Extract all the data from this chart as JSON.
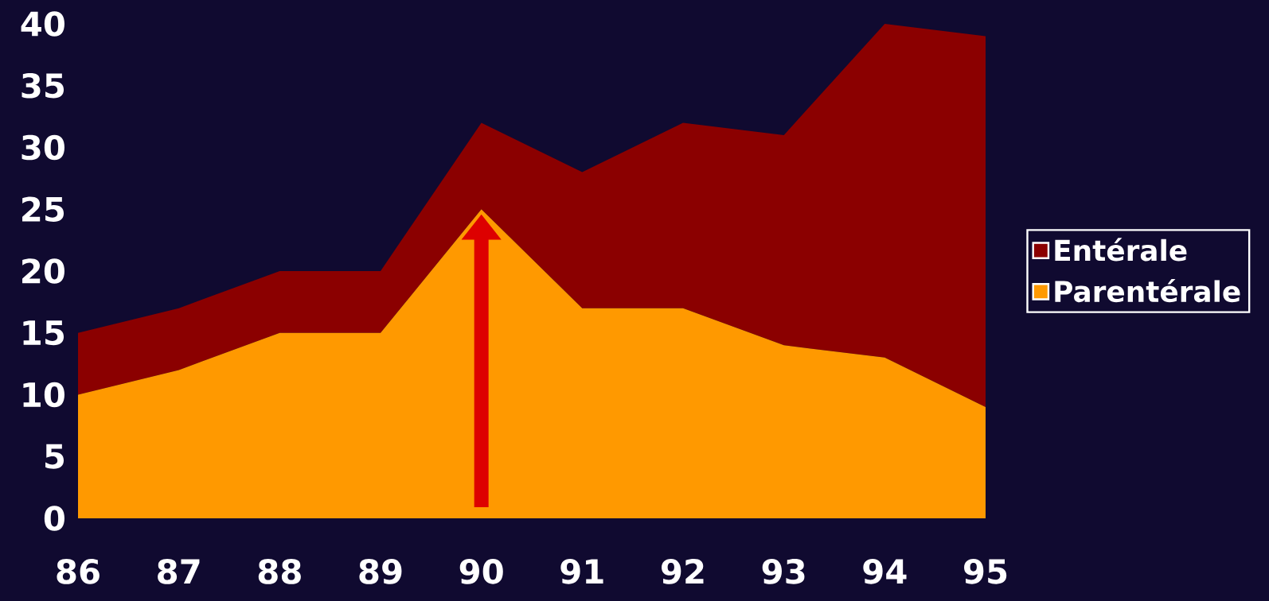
{
  "chart_data": {
    "type": "area",
    "stacked": true,
    "categories": [
      "86",
      "87",
      "88",
      "89",
      "90",
      "91",
      "92",
      "93",
      "94",
      "95"
    ],
    "series": [
      {
        "name": "Parentérale",
        "color": "#ff9900",
        "values": [
          10,
          12,
          15,
          15,
          25,
          17,
          17,
          14,
          13,
          9
        ]
      },
      {
        "name": "Entérale",
        "color": "#8b0000",
        "values": [
          5,
          5,
          5,
          5,
          7,
          11,
          15,
          17,
          27,
          30
        ]
      }
    ],
    "ylim": [
      0,
      40
    ],
    "yticks": [
      0,
      5,
      10,
      15,
      20,
      25,
      30,
      35,
      40
    ],
    "legend": "right"
  }
}
